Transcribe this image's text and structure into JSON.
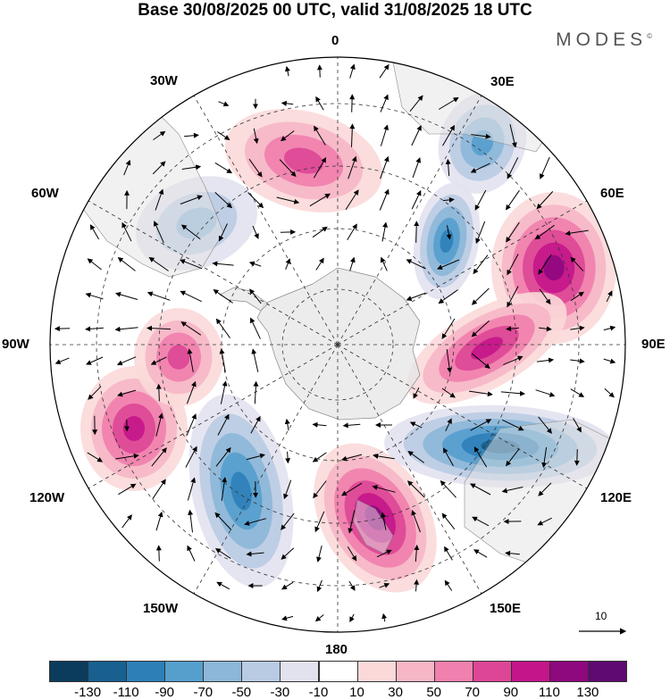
{
  "title": "Base 30/08/2025 00 UTC, valid 31/08/2025 18 UTC",
  "logo": "MODES",
  "logo_mark": "©",
  "longitude_labels": [
    {
      "id": "lon-0",
      "text": "0"
    },
    {
      "id": "lon-30e",
      "text": "30E"
    },
    {
      "id": "lon-60e",
      "text": "60E"
    },
    {
      "id": "lon-90e",
      "text": "90E"
    },
    {
      "id": "lon-120e",
      "text": "120E"
    },
    {
      "id": "lon-150e",
      "text": "150E"
    },
    {
      "id": "lon-180",
      "text": "180"
    },
    {
      "id": "lon-150w",
      "text": "150W"
    },
    {
      "id": "lon-120w",
      "text": "120W"
    },
    {
      "id": "lon-90w",
      "text": "90W"
    },
    {
      "id": "lon-60w",
      "text": "60W"
    },
    {
      "id": "lon-30w",
      "text": "30W"
    }
  ],
  "reference_vector_label": "10",
  "colorbar": {
    "labels": [
      "-130",
      "-110",
      "-90",
      "-70",
      "-50",
      "-30",
      "-10",
      "10",
      "30",
      "50",
      "70",
      "90",
      "110",
      "130"
    ],
    "colors": [
      "#0b3c5d",
      "#17608f",
      "#2d7fb8",
      "#559fcd",
      "#8cb7d8",
      "#b9cbe3",
      "#e2e2ef",
      "#ffffff",
      "#fbd9d9",
      "#f6b6c6",
      "#f080ad",
      "#dd4696",
      "#c4158a",
      "#8e087e",
      "#5e0a72"
    ]
  },
  "anomaly_centers": [
    {
      "name": "anomaly-neg-atlantic",
      "value": -60
    },
    {
      "name": "anomaly-neg-africa",
      "value": -70
    },
    {
      "name": "anomaly-neg-indian",
      "value": -90
    },
    {
      "name": "anomaly-neg-australia",
      "value": -110
    },
    {
      "name": "anomaly-neg-pacific",
      "value": -90
    },
    {
      "name": "anomaly-pos-south-atlantic",
      "value": 80
    },
    {
      "name": "anomaly-pos-indian",
      "value": 110
    },
    {
      "name": "anomaly-pos-indian-2",
      "value": 90
    },
    {
      "name": "anomaly-pos-newzealand",
      "value": 110
    },
    {
      "name": "anomaly-pos-pacific",
      "value": 100
    },
    {
      "name": "anomaly-pos-pacific-2",
      "value": 70
    }
  ]
}
